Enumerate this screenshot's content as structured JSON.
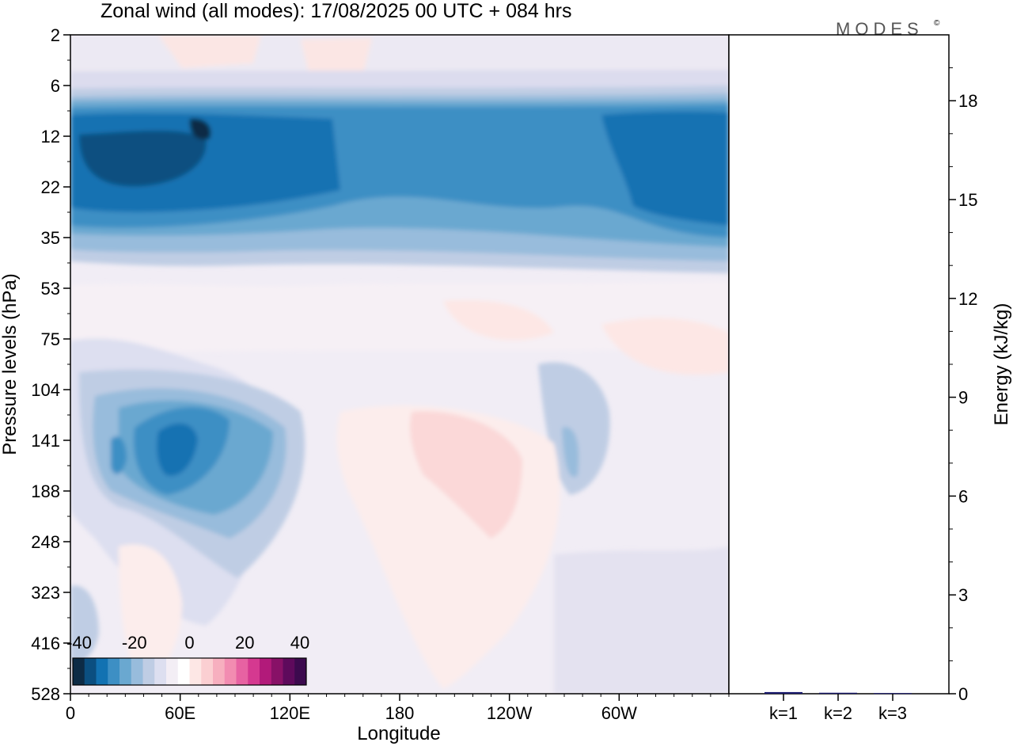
{
  "header": {
    "title": "Zonal wind (all modes):  17/08/2025  00 UTC  + 084 hrs",
    "logo": "MODES",
    "logo_mark": "©"
  },
  "chart_data": [
    {
      "type": "heatmap",
      "title": "Zonal wind (all modes):  17/08/2025  00 UTC  + 084 hrs",
      "xlabel": "Longitude",
      "ylabel": "Pressure levels (hPa)",
      "x_ticks": [
        "0",
        "60E",
        "120E",
        "180",
        "120W",
        "60W"
      ],
      "x_tick_values": [
        0,
        60,
        120,
        180,
        240,
        300
      ],
      "xlim": [
        0,
        360
      ],
      "y_ticks": [
        "2",
        "6",
        "12",
        "22",
        "35",
        "53",
        "75",
        "104",
        "141",
        "188",
        "248",
        "323",
        "416",
        "528"
      ],
      "y_scale": "model levels (categorical, top = 2 hPa, bottom = 528 hPa)",
      "colorbar": {
        "tick_labels": [
          "-40",
          "-20",
          "0",
          "20",
          "40"
        ],
        "colors": [
          "#0d2b45",
          "#0b4f80",
          "#1272b2",
          "#3d8fc4",
          "#6aa8d0",
          "#98bcdc",
          "#bfcde4",
          "#dddff0",
          "#f3eef5",
          "#ffffff",
          "#fde7e5",
          "#fbcfd2",
          "#f7afbf",
          "#f28cb1",
          "#e762a2",
          "#d53990",
          "#b21a7a",
          "#881167",
          "#5e0a5c",
          "#3c0a4e"
        ],
        "position": "bottom-left"
      },
      "regions": [
        {
          "band": "2-6 hPa",
          "sign": "weak easterly/westerly mix",
          "approx_value": 0
        },
        {
          "band": "6-45 hPa",
          "sign": "easterly",
          "approx_value": -30
        },
        {
          "band": "12-25 hPa",
          "sign": "strongest easterly core",
          "approx_value": -40
        },
        {
          "band": "50-104 hPa",
          "sign": "near zero",
          "approx_value": 0
        },
        {
          "band": "120-250 hPa, 30E-110E",
          "sign": "easterly jet",
          "approx_value": -30
        },
        {
          "band": "120-330 hPa, 165E-160W",
          "sign": "weak westerly",
          "approx_value": 8
        }
      ]
    },
    {
      "type": "bar",
      "ylabel": "Energy (kJ/kg)",
      "ylim": [
        0,
        20
      ],
      "y_ticks": [
        "0",
        "3",
        "6",
        "9",
        "12",
        "15",
        "18"
      ],
      "categories": [
        "k=1",
        "k=2",
        "k=3"
      ],
      "values": [
        0.05,
        0.03,
        0.02
      ]
    }
  ]
}
